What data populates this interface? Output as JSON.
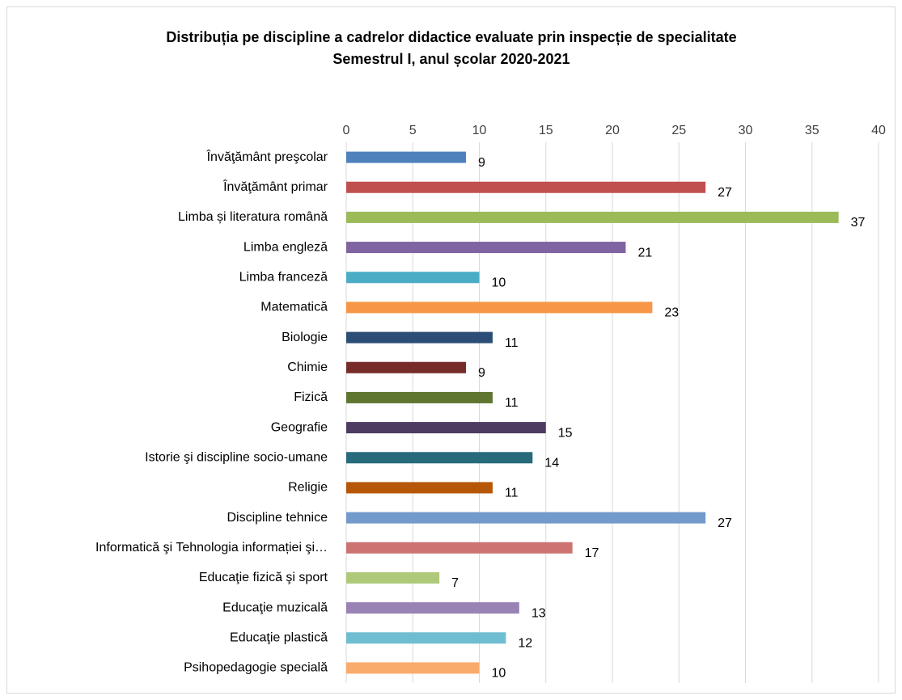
{
  "chart_data": {
    "type": "barh",
    "title": "Distribuția pe discipline a cadrelor didactice evaluate prin inspecție de specialitate",
    "subtitle": "Semestrul I, anul școlar 2020-2021",
    "categories": [
      "Învăţământ preşcolar",
      "Învăţământ primar",
      "Limba și literatura română",
      "Limba engleză",
      "Limba franceză",
      "Matematică",
      "Biologie",
      "Chimie",
      "Fizică",
      "Geografie",
      "Istorie şi discipline socio-umane",
      "Religie",
      "Discipline tehnice",
      "Informatică şi Tehnologia informației şi…",
      "Educaţie fizică şi sport",
      "Educaţie muzicală",
      "Educaţie plastică",
      "Psihopedagogie specială"
    ],
    "values": [
      9,
      27,
      37,
      21,
      10,
      23,
      11,
      9,
      11,
      15,
      14,
      11,
      27,
      17,
      7,
      13,
      12,
      10
    ],
    "colors": [
      "#4f81bd",
      "#c0504d",
      "#9bbb59",
      "#8064a2",
      "#4bacc6",
      "#f79646",
      "#2c4d75",
      "#772c2a",
      "#5f7530",
      "#4d3b62",
      "#276a7c",
      "#b65708",
      "#729aca",
      "#cd7371",
      "#afc97a",
      "#9983b5",
      "#6fbdd1",
      "#f9ab6b"
    ],
    "xlim": [
      0,
      40
    ],
    "xticks": [
      0,
      5,
      10,
      15,
      20,
      25,
      30,
      35,
      40
    ],
    "grid": true
  }
}
